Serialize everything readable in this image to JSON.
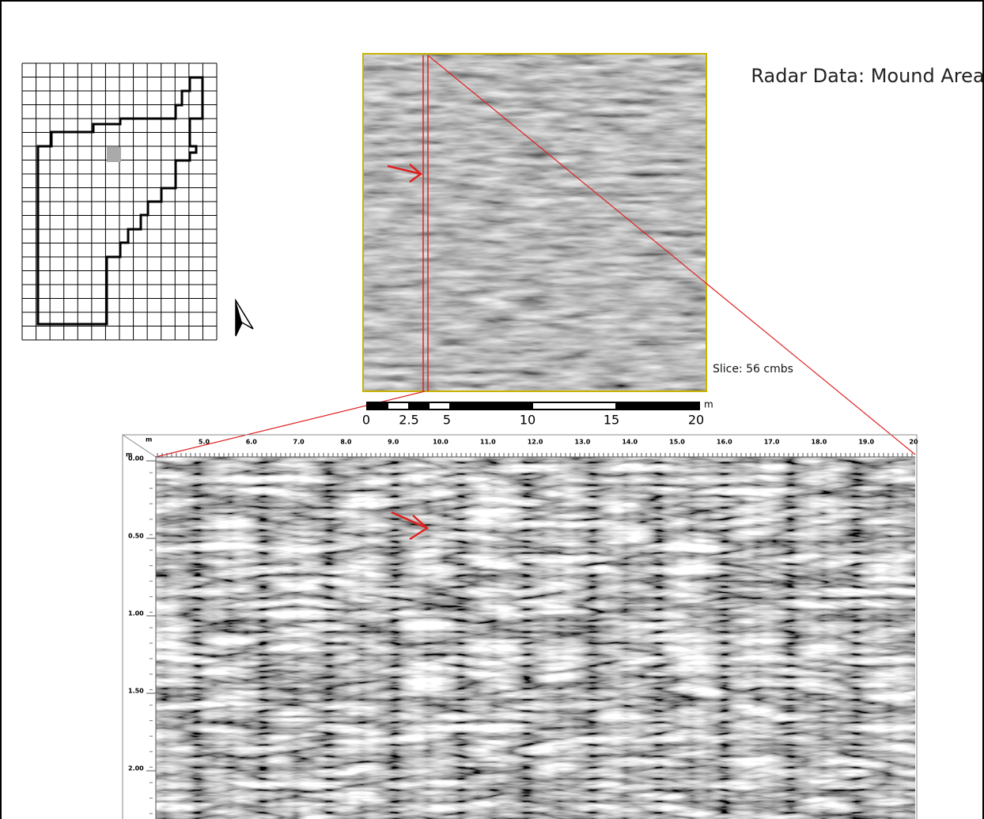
{
  "title": "Radar Data: Mound Area",
  "slice": {
    "caption": "Slice: 56 cmbs"
  },
  "scale_bar": {
    "unit": "m",
    "labels": [
      "0",
      "2.5",
      "5",
      "10",
      "15",
      "20"
    ]
  },
  "profile": {
    "x_unit": "m",
    "x_labels": [
      "5.0",
      "6.0",
      "7.0",
      "8.0",
      "9.0",
      "10.0",
      "11.0",
      "12.0",
      "13.0",
      "14.0",
      "15.0",
      "16.0",
      "17.0",
      "18.0",
      "19.0",
      "20"
    ],
    "y_unit": "m",
    "y_labels": [
      "0.00",
      "0.50",
      "1.00",
      "1.50",
      "2.00"
    ]
  }
}
